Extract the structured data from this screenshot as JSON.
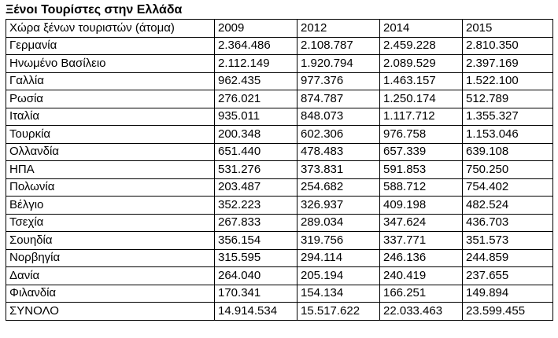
{
  "title": "Ξένοι Τουρίστες στην Ελλάδα",
  "table": {
    "headers": [
      "Χώρα ξένων τουριστών (άτομα)",
      "2009",
      "2012",
      "2014",
      "2015"
    ],
    "rows": [
      [
        "Γερμανία",
        "2.364.486",
        "2.108.787",
        "2.459.228",
        "2.810.350"
      ],
      [
        "Ηνωμένο Βασίλειο",
        "2.112.149",
        "1.920.794",
        "2.089.529",
        "2.397.169"
      ],
      [
        "Γαλλία",
        "962.435",
        "977.376",
        "1.463.157",
        "1.522.100"
      ],
      [
        "Ρωσία",
        "276.021",
        "874.787",
        "1.250.174",
        "512.789"
      ],
      [
        "Ιταλία",
        "935.011",
        "848.073",
        "1.117.712",
        "1.355.327"
      ],
      [
        "Τουρκία",
        "200.348",
        "602.306",
        "976.758",
        "1.153.046"
      ],
      [
        "Ολλανδία",
        "651.440",
        "478.483",
        "657.339",
        "639.108"
      ],
      [
        "ΗΠΑ",
        "531.276",
        "373.831",
        "591.853",
        "750.250"
      ],
      [
        "Πολωνία",
        "203.487",
        "254.682",
        "588.712",
        "754.402"
      ],
      [
        "Βέλγιο",
        "352.223",
        "326.937",
        "409.198",
        "482.524"
      ],
      [
        "Τσεχία",
        "267.833",
        "289.034",
        "347.624",
        "436.703"
      ],
      [
        "Σουηδία",
        "356.154",
        "319.756",
        "337.771",
        "351.573"
      ],
      [
        "Νορβηγία",
        "315.595",
        "294.114",
        "246.136",
        "244.859"
      ],
      [
        "Δανία",
        "264.040",
        "205.194",
        "240.419",
        "237.655"
      ],
      [
        "Φιλανδία",
        "170.341",
        "154.134",
        "166.251",
        "149.894"
      ],
      [
        "ΣΥΝΟΛΟ",
        "14.914.534",
        "15.517.622",
        "22.033.463",
        "23.599.455"
      ]
    ]
  }
}
